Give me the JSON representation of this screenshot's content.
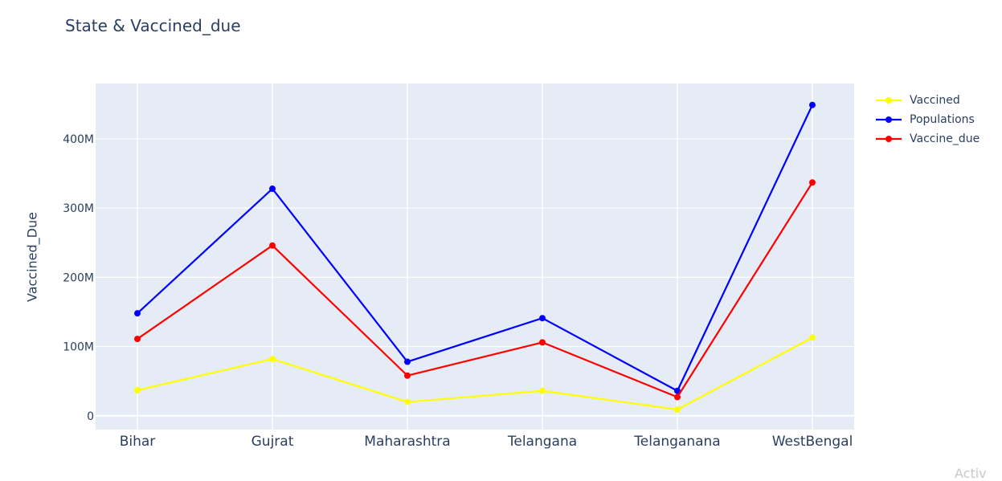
{
  "chart_data": {
    "type": "line",
    "title": "State & Vaccined_due",
    "xlabel": "",
    "ylabel": "Vaccined_Due",
    "categories": [
      "Bihar",
      "Gujrat",
      "Maharashtra",
      "Telangana",
      "Telanganana",
      "WestBengal"
    ],
    "ylim": [
      -20000000,
      480000000
    ],
    "yticks": [
      0,
      100000000,
      200000000,
      300000000,
      400000000
    ],
    "ytick_labels": [
      "0",
      "100M",
      "200M",
      "300M",
      "400M"
    ],
    "grid": true,
    "legend_position": "top-right",
    "series": [
      {
        "name": "Vaccined",
        "color": "#ffff00",
        "values": [
          37000000,
          82000000,
          20000000,
          36000000,
          9000000,
          113000000
        ]
      },
      {
        "name": "Populations",
        "color": "#0000ff",
        "values": [
          148000000,
          328000000,
          78000000,
          141000000,
          36000000,
          449000000
        ]
      },
      {
        "name": "Vaccine_due",
        "color": "#ff0000",
        "values": [
          111000000,
          246000000,
          58000000,
          106000000,
          27000000,
          337000000
        ]
      }
    ]
  },
  "watermark_text": "Activ"
}
